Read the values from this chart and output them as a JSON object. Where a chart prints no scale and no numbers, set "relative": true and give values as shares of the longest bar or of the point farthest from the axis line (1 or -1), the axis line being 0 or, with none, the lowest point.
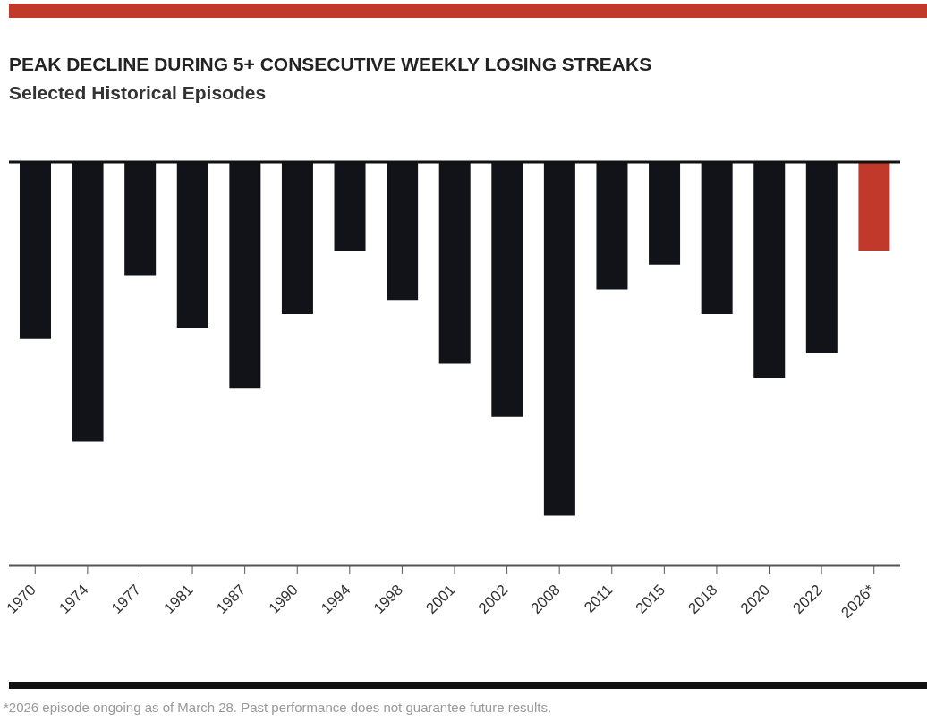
{
  "chart_data": {
    "type": "bar",
    "title": "PEAK DECLINE DURING 5+ CONSECUTIVE WEEKLY LOSING STREAKS",
    "subtitle": "Selected Historical Episodes",
    "relative": true,
    "categories": [
      "1970",
      "1974",
      "1977",
      "1981",
      "1987",
      "1990",
      "1994",
      "1998",
      "2001",
      "2002",
      "2008",
      "2011",
      "2015",
      "2018",
      "2020",
      "2022",
      "2026*"
    ],
    "values": [
      -0.5,
      -0.79,
      -0.32,
      -0.47,
      -0.64,
      -0.43,
      -0.25,
      -0.39,
      -0.57,
      -0.72,
      -1,
      -0.36,
      -0.29,
      -0.43,
      -0.61,
      -0.54,
      -0.25
    ],
    "colors": [
      "#111318",
      "#111318",
      "#111318",
      "#111318",
      "#111318",
      "#111318",
      "#111318",
      "#111318",
      "#111318",
      "#111318",
      "#111318",
      "#111318",
      "#111318",
      "#111318",
      "#111318",
      "#111318",
      "#c0392b"
    ],
    "annotations": [
      "*2026 episode ongoing as of March 28. Past performance does not guarantee future results."
    ],
    "grid": false,
    "legend": false
  }
}
